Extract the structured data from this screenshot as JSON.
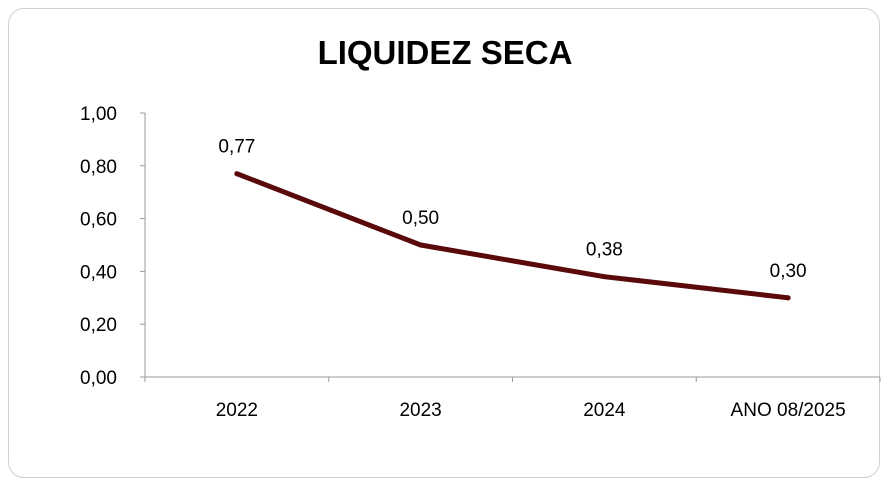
{
  "chart_data": {
    "type": "line",
    "title": "LIQUIDEZ SECA",
    "xlabel": "",
    "ylabel": "",
    "categories": [
      "2022",
      "2023",
      "2024",
      "ANO 08/2025"
    ],
    "series": [
      {
        "values": [
          0.77,
          0.5,
          0.38,
          0.3
        ],
        "value_labels": [
          "0,77",
          "0,50",
          "0,38",
          "0,30"
        ],
        "color": "#5a0a0a"
      }
    ],
    "ylim": [
      0,
      1.0
    ],
    "yticks": [
      0,
      0.2,
      0.4,
      0.6,
      0.8,
      1.0
    ],
    "ytick_labels": [
      "0,00",
      "0,20",
      "0,40",
      "0,60",
      "0,80",
      "1,00"
    ],
    "grid": false,
    "legend": "none"
  }
}
